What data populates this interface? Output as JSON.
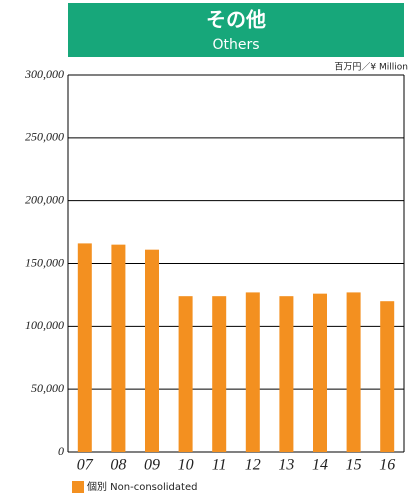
{
  "chart_data": {
    "type": "bar",
    "title": "その他",
    "subtitle": "Others",
    "unit": "百万円／¥ Million",
    "categories": [
      "07",
      "08",
      "09",
      "10",
      "11",
      "12",
      "13",
      "14",
      "15",
      "16"
    ],
    "series": [
      {
        "name": "個別 Non-consolidated",
        "color": "#f39020",
        "values": [
          166000,
          165000,
          161000,
          124000,
          124000,
          127000,
          124000,
          126000,
          127000,
          120000
        ]
      }
    ],
    "ylim": [
      0,
      300000
    ],
    "yticks": [
      0,
      {
        "value": 50000,
        "label": "50,000"
      },
      {
        "value": 100000,
        "label": "100,000"
      },
      {
        "value": 150000,
        "label": "150,000"
      },
      {
        "value": 200000,
        "label": "200,000"
      },
      {
        "value": 250000,
        "label": "250,000"
      },
      {
        "value": 300000,
        "label": "300,000"
      }
    ],
    "grid": true,
    "banner_color": "#17a77a"
  }
}
